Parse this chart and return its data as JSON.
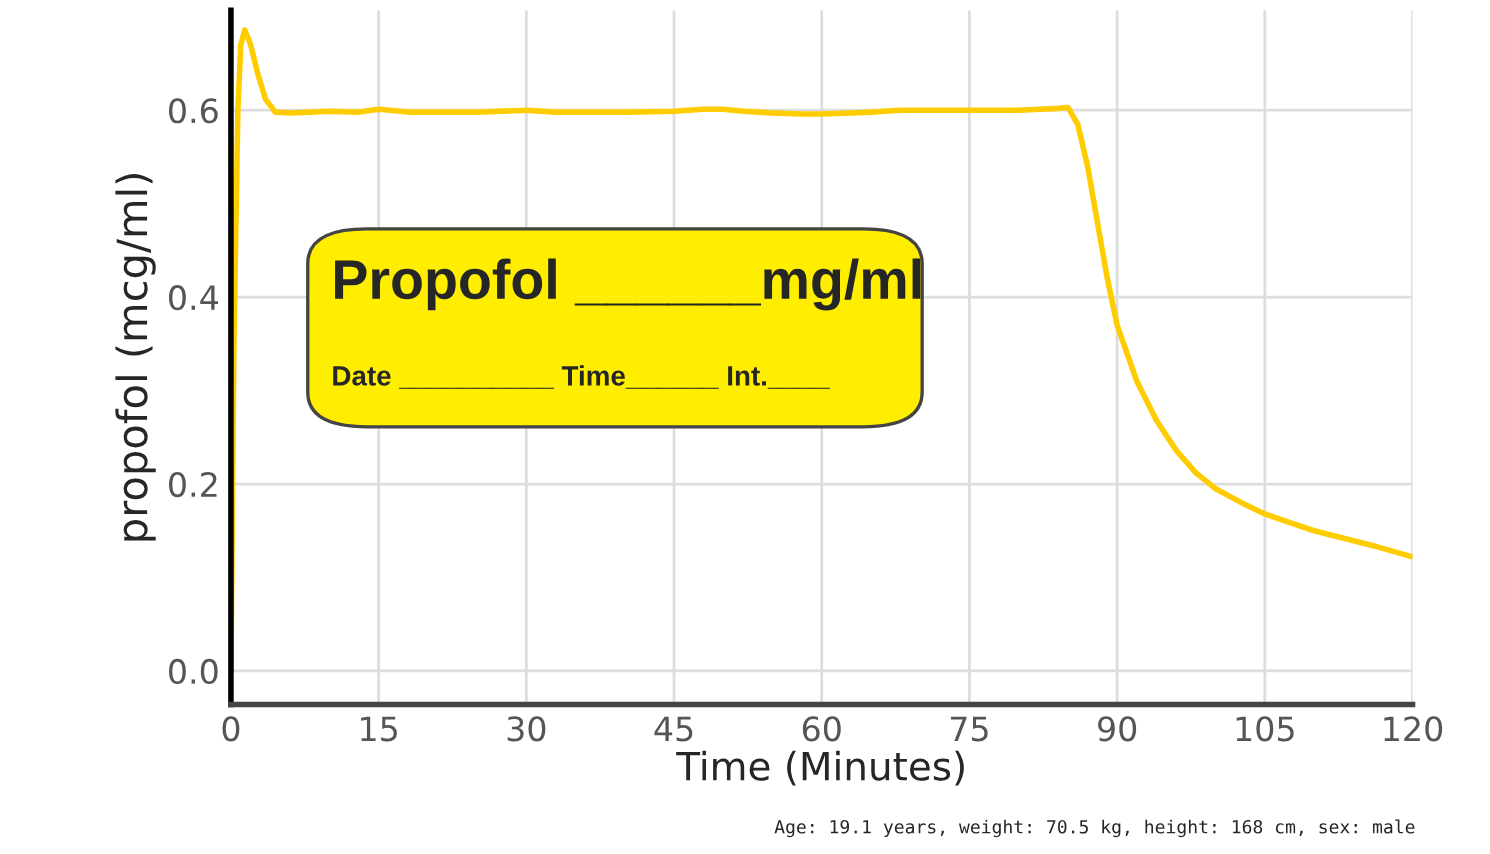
{
  "chart_data": {
    "type": "line",
    "xlabel": "Time (Minutes)",
    "ylabel": "propofol (mcg/ml)",
    "x": [
      0,
      0.3,
      0.7,
      1.0,
      1.4,
      2.0,
      2.7,
      3.5,
      4.5,
      6,
      8,
      10,
      13,
      15,
      18,
      20,
      25,
      30,
      33,
      35,
      40,
      45,
      48,
      50,
      52,
      55,
      58,
      60,
      63,
      65,
      68,
      70,
      75,
      80,
      84,
      85,
      86,
      87,
      88,
      89,
      90,
      92,
      94,
      96,
      98,
      100,
      103,
      105,
      108,
      110,
      113,
      116,
      120
    ],
    "series": [
      {
        "color": "#ffcc00",
        "values": [
          0,
          0.35,
          0.6,
          0.67,
          0.686,
          0.67,
          0.64,
          0.612,
          0.598,
          0.597,
          0.598,
          0.599,
          0.598,
          0.601,
          0.598,
          0.598,
          0.598,
          0.6,
          0.598,
          0.598,
          0.598,
          0.599,
          0.601,
          0.601,
          0.599,
          0.597,
          0.596,
          0.596,
          0.597,
          0.598,
          0.6,
          0.6,
          0.6,
          0.6,
          0.602,
          0.603,
          0.585,
          0.54,
          0.48,
          0.42,
          0.37,
          0.31,
          0.268,
          0.236,
          0.212,
          0.195,
          0.178,
          0.168,
          0.157,
          0.15,
          0.142,
          0.134,
          0.122
        ]
      }
    ],
    "xlim": [
      0,
      120
    ],
    "xticks": [
      0,
      15,
      30,
      45,
      60,
      75,
      90,
      105,
      120
    ],
    "ylim": [
      -0.036,
      0.707
    ],
    "yticks": [
      {
        "value": 0,
        "label": "0.0"
      },
      0.2,
      0.4,
      0.6
    ],
    "grid": true,
    "marker": "none",
    "line_style": "solid",
    "annotations": [
      "Propofol ______mg/ml",
      "Date __________ Time______ Int.____",
      "Age: 19.1 years, weight: 70.5 kg, height: 168 cm, sex: male"
    ]
  }
}
